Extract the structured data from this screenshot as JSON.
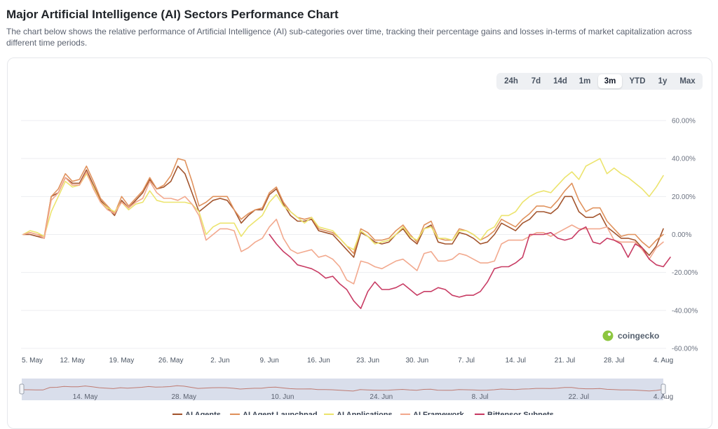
{
  "header": {
    "title": "Major Artificial Intelligence (AI) Sectors Performance Chart",
    "description": "The chart below shows the relative performance of Artificial Intelligence (AI) sub-categories over time, tracking their percentage gains and losses in-terms of market capitalization across different time periods."
  },
  "range_tabs": [
    "24h",
    "7d",
    "14d",
    "1m",
    "3m",
    "YTD",
    "1y",
    "Max"
  ],
  "active_range": "3m",
  "watermark": "coingecko",
  "navigator": {
    "labels": [
      "14. May",
      "28. May",
      "10. Jun",
      "24. Jun",
      "8. Jul",
      "22. Jul",
      "4. Aug"
    ]
  },
  "colors": {
    "ai_agents": "#a3552e",
    "ai_agent_launchpad": "#e0925d",
    "ai_applications": "#ece46e",
    "ai_framework": "#f2a98e",
    "bittensor_subnets": "#c83c64",
    "gridline": "#eceef1",
    "navigator_fill": "#d6dbe8"
  },
  "chart_data": {
    "type": "line",
    "title": "",
    "xlabel": "",
    "ylabel": "",
    "ylim": [
      -60,
      60
    ],
    "y_ticks": [
      "60.00%",
      "40.00%",
      "20.00%",
      "0.00%",
      "-20.00%",
      "-40.00%",
      "-60.00%"
    ],
    "y_tick_values": [
      60,
      40,
      20,
      0,
      -20,
      -40,
      -60
    ],
    "x_ticks": [
      "5. May",
      "12. May",
      "19. May",
      "26. May",
      "2. Jun",
      "9. Jun",
      "16. Jun",
      "23. Jun",
      "30. Jun",
      "7. Jul",
      "14. Jul",
      "21. Jul",
      "28. Jul",
      "4. Aug"
    ],
    "grid": true,
    "legend_position": "bottom",
    "x_start": "5. May",
    "x_step_days": 1,
    "series": [
      {
        "name": "AI Agents",
        "color_key": "ai_agents",
        "values": [
          0,
          0,
          -1,
          -2,
          20,
          22,
          30,
          27,
          27,
          34,
          26,
          18,
          14,
          10,
          18,
          14,
          18,
          22,
          29,
          24,
          25,
          28,
          36,
          32,
          22,
          12,
          15,
          18,
          19,
          18,
          13,
          6,
          10,
          13,
          13,
          21,
          24,
          16,
          10,
          7,
          7,
          8,
          2,
          1,
          0,
          -4,
          -8,
          -12,
          1,
          -1,
          -4,
          -5,
          -4,
          0,
          3,
          -2,
          -5,
          3,
          5,
          -4,
          -5,
          -5,
          1,
          0,
          -2,
          -5,
          -4,
          0,
          6,
          4,
          2,
          6,
          8,
          12,
          12,
          11,
          14,
          20,
          20,
          12,
          9,
          9,
          11,
          4,
          1,
          -2,
          -2,
          -3,
          -7,
          -11,
          -6,
          3
        ]
      },
      {
        "name": "AI Agent Launchpad",
        "color_key": "ai_agent_launchpad",
        "values": [
          0,
          1,
          0,
          -1,
          20,
          24,
          32,
          28,
          29,
          36,
          28,
          19,
          15,
          11,
          20,
          15,
          19,
          23,
          30,
          24,
          26,
          31,
          40,
          39,
          28,
          15,
          17,
          20,
          20,
          20,
          13,
          8,
          11,
          13,
          14,
          22,
          25,
          17,
          12,
          9,
          8,
          9,
          3,
          2,
          1,
          -2,
          -6,
          -10,
          3,
          1,
          -3,
          -3,
          -2,
          2,
          5,
          0,
          -4,
          5,
          7,
          -2,
          -3,
          -3,
          3,
          2,
          0,
          -3,
          -1,
          2,
          8,
          6,
          4,
          8,
          11,
          15,
          15,
          14,
          18,
          23,
          27,
          18,
          12,
          14,
          14,
          7,
          3,
          -1,
          0,
          0,
          -4,
          -7,
          -3,
          0
        ]
      },
      {
        "name": "AI Applications",
        "color_key": "ai_applications",
        "values": [
          0,
          2,
          1,
          -1,
          12,
          20,
          28,
          25,
          26,
          32,
          25,
          17,
          14,
          12,
          17,
          13,
          16,
          17,
          23,
          18,
          17,
          17,
          17,
          17,
          16,
          12,
          0,
          4,
          6,
          6,
          6,
          -1,
          4,
          7,
          10,
          17,
          21,
          15,
          12,
          9,
          6,
          9,
          4,
          3,
          2,
          -2,
          -6,
          -8,
          2,
          -1,
          -5,
          -4,
          -3,
          0,
          4,
          -1,
          -3,
          3,
          4,
          -2,
          -2,
          -3,
          2,
          2,
          0,
          -3,
          2,
          4,
          10,
          10,
          12,
          17,
          20,
          22,
          23,
          22,
          26,
          30,
          33,
          29,
          36,
          38,
          40,
          32,
          35,
          32,
          30,
          27,
          24,
          20,
          25,
          31
        ]
      },
      {
        "name": "AI Framework",
        "color_key": "ai_framework",
        "values": [
          0,
          1,
          0,
          -2,
          18,
          22,
          30,
          26,
          26,
          33,
          24,
          17,
          13,
          11,
          17,
          14,
          17,
          19,
          28,
          22,
          19,
          19,
          18,
          20,
          16,
          10,
          -3,
          0,
          3,
          3,
          2,
          -9,
          -7,
          -4,
          -2,
          4,
          8,
          -2,
          -8,
          -10,
          -9,
          -8,
          -12,
          -11,
          -13,
          -17,
          -24,
          -26,
          -14,
          -15,
          -17,
          -18,
          -16,
          -14,
          -13,
          -16,
          -19,
          -10,
          -9,
          -14,
          -14,
          -13,
          -10,
          -11,
          -13,
          -15,
          -15,
          -14,
          -5,
          -3,
          -3,
          -3,
          -1,
          1,
          1,
          -1,
          1,
          3,
          5,
          3,
          3,
          3,
          3,
          4,
          -3,
          -4,
          -4,
          -4,
          -8,
          -13,
          -7,
          -4
        ]
      },
      {
        "name": "Bittensor Subnets",
        "color_key": "bittensor_subnets",
        "values": [
          null,
          null,
          null,
          null,
          null,
          null,
          null,
          null,
          null,
          null,
          null,
          null,
          null,
          null,
          null,
          null,
          null,
          null,
          null,
          null,
          null,
          null,
          null,
          null,
          null,
          null,
          null,
          null,
          null,
          null,
          null,
          null,
          null,
          null,
          null,
          0,
          -5,
          -9,
          -12,
          -16,
          -17,
          -18,
          -20,
          -23,
          -22,
          -26,
          -29,
          -35,
          -39,
          -30,
          -25,
          -29,
          -29,
          -28,
          -26,
          -29,
          -32,
          -30,
          -30,
          -28,
          -29,
          -32,
          -33,
          -32,
          -32,
          -30,
          -25,
          -18,
          -17,
          -17,
          -15,
          -12,
          0,
          0,
          0,
          1,
          -2,
          -3,
          -2,
          2,
          4,
          -4,
          -5,
          -2,
          -3,
          -5,
          -12,
          -5,
          -7,
          -13,
          -16,
          -17,
          -12
        ]
      }
    ]
  }
}
